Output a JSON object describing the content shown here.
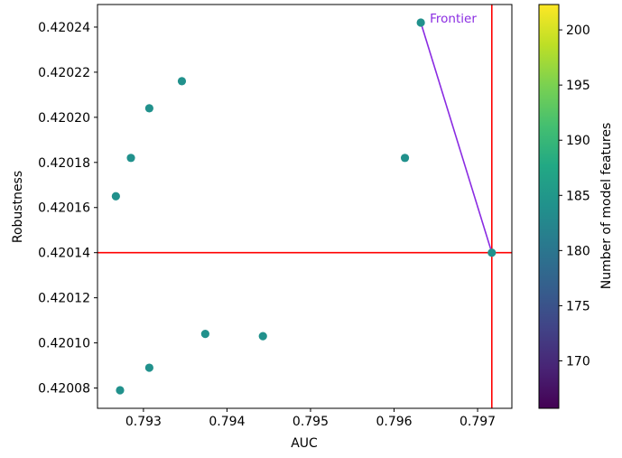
{
  "chart_data": {
    "type": "scatter",
    "xlabel": "AUC",
    "ylabel": "Robustness",
    "xlim": [
      0.79245,
      0.79741
    ],
    "ylim": [
      0.420071,
      0.42025
    ],
    "x_ticks": [
      0.793,
      0.794,
      0.795,
      0.796,
      0.797
    ],
    "x_tick_labels": [
      "0.793",
      "0.794",
      "0.795",
      "0.796",
      "0.797"
    ],
    "y_ticks": [
      0.42008,
      0.4201,
      0.42012,
      0.42014,
      0.42016,
      0.42018,
      0.4202,
      0.42022,
      0.42024
    ],
    "y_tick_labels": [
      "0.42008",
      "0.42010",
      "0.42012",
      "0.42014",
      "0.42016",
      "0.42018",
      "0.42020",
      "0.42022",
      "0.42024"
    ],
    "points": [
      {
        "x": 0.79272,
        "y": 0.420079
      },
      {
        "x": 0.79307,
        "y": 0.420089
      },
      {
        "x": 0.79374,
        "y": 0.420104
      },
      {
        "x": 0.79443,
        "y": 0.420103
      },
      {
        "x": 0.79267,
        "y": 0.420165
      },
      {
        "x": 0.79285,
        "y": 0.420182
      },
      {
        "x": 0.79307,
        "y": 0.420204
      },
      {
        "x": 0.79346,
        "y": 0.420216
      },
      {
        "x": 0.79613,
        "y": 0.420182
      },
      {
        "x": 0.79632,
        "y": 0.420242
      },
      {
        "x": 0.79717,
        "y": 0.42014
      }
    ],
    "point_color": "#21918c",
    "frontier": {
      "label": "Frontier",
      "color": "#8a2be2",
      "points": [
        {
          "x": 0.79632,
          "y": 0.420242
        },
        {
          "x": 0.79717,
          "y": 0.42014
        }
      ]
    },
    "reference_lines": {
      "color": "#ff0000",
      "x": 0.79717,
      "y": 0.42014
    },
    "colorbar": {
      "label": "Number of model features",
      "colormap": "viridis",
      "range": [
        165.7,
        202.3
      ],
      "ticks": [
        170,
        175,
        180,
        185,
        190,
        195,
        200
      ],
      "tick_labels": [
        "170",
        "175",
        "180",
        "185",
        "190",
        "195",
        "200"
      ]
    },
    "grid": false
  }
}
